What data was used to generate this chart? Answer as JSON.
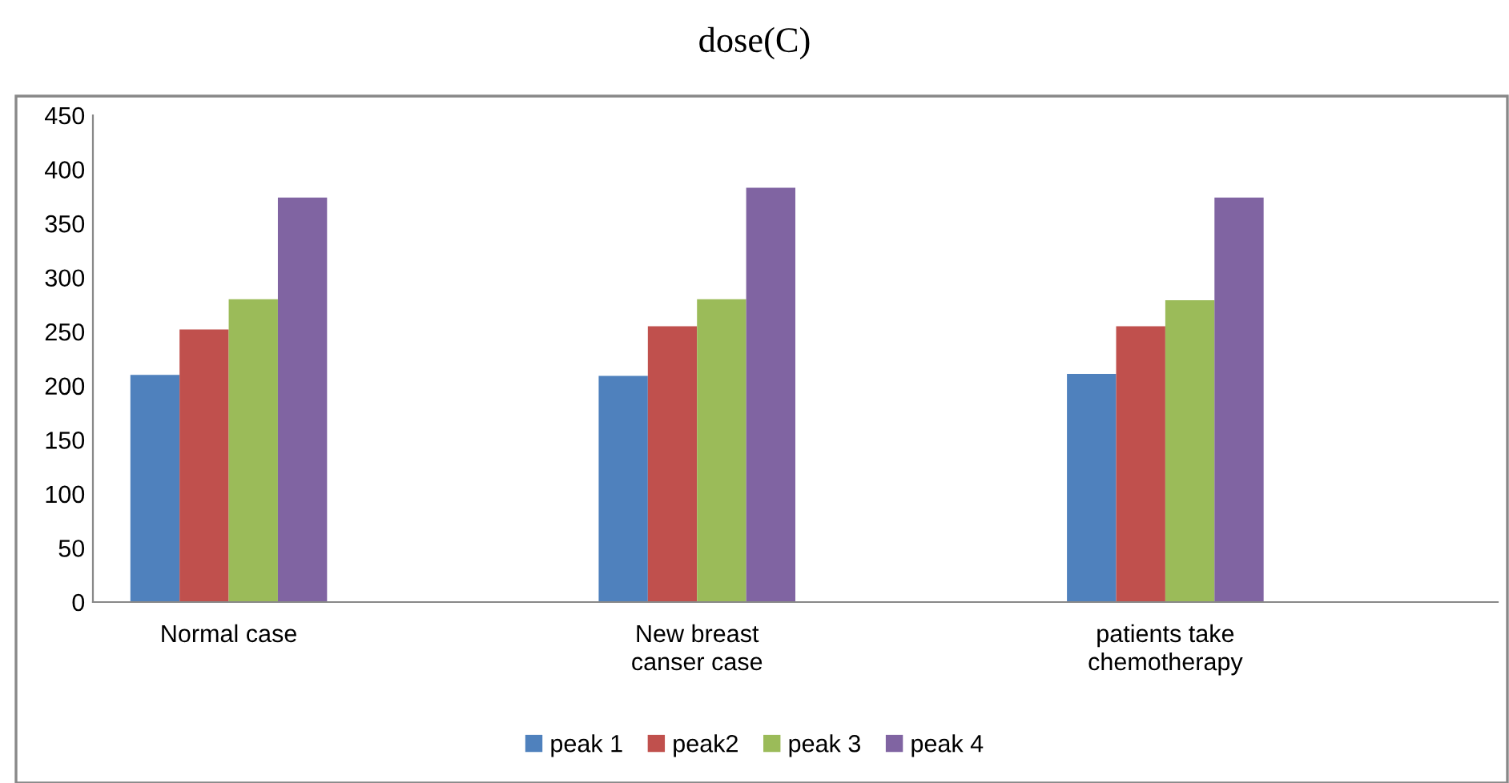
{
  "chart_data": {
    "type": "bar",
    "title": "dose(C)",
    "categories": [
      "Normal case",
      "New breast\ncanser case",
      "patients take\nchemotherapy"
    ],
    "series": [
      {
        "name": "peak 1",
        "color": "#4f81bd",
        "values": [
          210,
          209,
          211
        ]
      },
      {
        "name": "peak2",
        "color": "#c0504d",
        "values": [
          252,
          255,
          255
        ]
      },
      {
        "name": "peak 3",
        "color": "#9bbb59",
        "values": [
          280,
          280,
          279
        ]
      },
      {
        "name": "peak 4",
        "color": "#8064a2",
        "values": [
          374,
          383,
          374
        ]
      }
    ],
    "ylim": [
      0,
      450
    ],
    "yticks": [
      0,
      50,
      100,
      150,
      200,
      250,
      300,
      350,
      400,
      450
    ],
    "grid": false,
    "legend": "bottom"
  }
}
